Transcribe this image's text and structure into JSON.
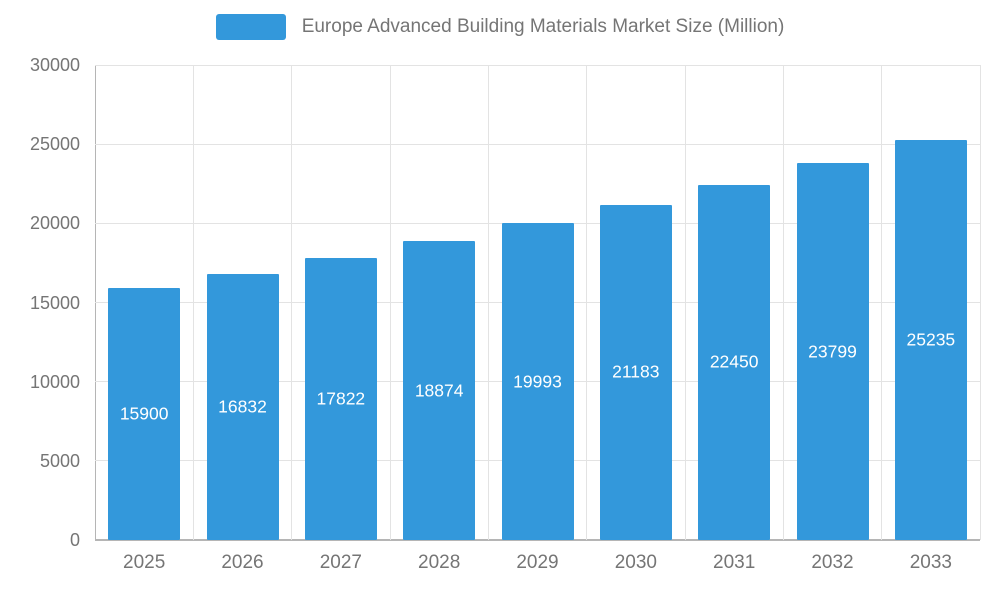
{
  "legend": {
    "label": "Europe Advanced Building Materials Market Size (Million)"
  },
  "chart_data": {
    "type": "bar",
    "title": "Europe Advanced Building Materials Market Size (Million)",
    "categories": [
      "2025",
      "2026",
      "2027",
      "2028",
      "2029",
      "2030",
      "2031",
      "2032",
      "2033"
    ],
    "values": [
      15900,
      16832,
      17822,
      18874,
      19993,
      21183,
      22450,
      23799,
      25235
    ],
    "series": [
      {
        "name": "Europe Advanced Building Materials Market Size (Million)",
        "values": [
          15900,
          16832,
          17822,
          18874,
          19993,
          21183,
          22450,
          23799,
          25235
        ]
      }
    ],
    "xlabel": "",
    "ylabel": "",
    "ylim": [
      0,
      30000
    ],
    "yticks": [
      0,
      5000,
      10000,
      15000,
      20000,
      25000,
      30000
    ],
    "grid": true,
    "legend_position": "top",
    "value_labels": "inside-middle",
    "colors": {
      "bar": "#3398DB",
      "bar_label": "#ffffff",
      "axis_text": "#757575",
      "gridline": "#e3e3e3",
      "axis_line": "#b5b5b5",
      "background": "#ffffff"
    }
  }
}
